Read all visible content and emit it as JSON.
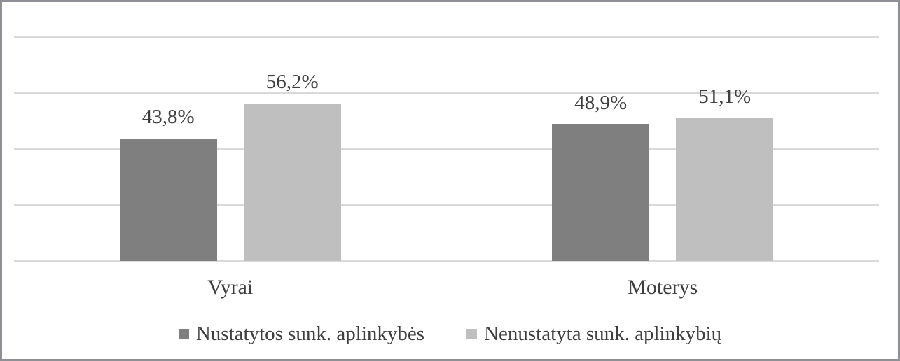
{
  "chart_data": {
    "type": "bar",
    "categories": [
      "Vyrai",
      "Moterys"
    ],
    "series": [
      {
        "name": "Nustatytos sunk. aplinkybės",
        "values": [
          43.8,
          48.9
        ],
        "labels": [
          "43,8%",
          "48,9%"
        ],
        "color": "#7f7f7f"
      },
      {
        "name": "Nenustatyta sunk. aplinkybių",
        "values": [
          56.2,
          51.1
        ],
        "labels": [
          "56,2%",
          "51,1%"
        ],
        "color": "#bfbfbf"
      }
    ],
    "title": "",
    "xlabel": "",
    "ylabel": "",
    "ylim": [
      0,
      80
    ],
    "gridline_step": 20,
    "grid": true,
    "legend_position": "bottom",
    "gridline_color": "#d9d9d9",
    "text_color": "#3f3f3f",
    "frame_border_color": "#8f8f96"
  }
}
